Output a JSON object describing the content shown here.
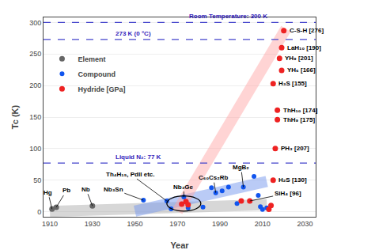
{
  "chart_data": {
    "type": "scatter",
    "xlabel": "Year",
    "ylabel": "Tc (K)",
    "xlim": [
      1907,
      2035
    ],
    "ylim": [
      -8,
      308
    ],
    "xticks": [
      1910,
      1930,
      1950,
      1970,
      1990,
      2010,
      2030
    ],
    "yticks": [
      0,
      50,
      100,
      150,
      200,
      250,
      300
    ],
    "grid": "y",
    "legend": "upper left",
    "series": [
      {
        "name": "Element",
        "color": "#666666",
        "x": [
          1911,
          1913,
          1930
        ],
        "values": [
          4.2,
          7.2,
          9.2
        ]
      },
      {
        "name": "Compound",
        "color": "#1155ee",
        "x": [
          1954,
          1965,
          1973,
          1967,
          1975,
          1982,
          1986,
          1988,
          1991,
          1994,
          1998,
          2001,
          2006,
          2008,
          2009,
          2010,
          2012
        ],
        "values": [
          18.3,
          17.0,
          23.2,
          4.5,
          6.0,
          7.5,
          38.0,
          30.0,
          33.0,
          39.0,
          13.0,
          39.0,
          56.0,
          26.0,
          8.0,
          3.5,
          6.0
        ]
      },
      {
        "name": "Hydride [GPa]",
        "color": "#ee2222",
        "x": [
          1972,
          1974,
          1975,
          2000,
          2004,
          2013,
          2014,
          2015,
          2015,
          2016,
          2017,
          2017,
          2018,
          2019,
          2019,
          2020
        ],
        "values": [
          12.0,
          16.0,
          11.0,
          17.0,
          17.0,
          4.0,
          10.0,
          203.0,
          50.0,
          100.0,
          161.0,
          146.0,
          243.0,
          260.0,
          224.0,
          287.0
        ]
      }
    ],
    "trends": [
      {
        "x": [
          1910,
          2012
        ],
        "values": [
          0.5,
          11
        ],
        "color": "#b0b0b0"
      },
      {
        "x": [
          1950,
          2012
        ],
        "values": [
          1.0,
          48
        ],
        "color": "#7799ee"
      },
      {
        "x": [
          1970,
          2021
        ],
        "values": [
          1.0,
          290
        ],
        "color": "#ffaaaa"
      }
    ],
    "reference_lines": [
      {
        "y": 300,
        "color": "#4444cc",
        "label": "Room Temperature: 300 K",
        "label_color": "#3322bb"
      },
      {
        "y": 273,
        "color": "#4444cc",
        "label": "273 K (0 °C)",
        "label_color": "#3322bb"
      },
      {
        "y": 77,
        "color": "#4444cc",
        "label": "Liquid N₂: 77 K",
        "label_color": "#3322bb"
      }
    ],
    "ellipse": {
      "x": 1973,
      "y": 13,
      "width": 16,
      "height": 24,
      "color": "#000000"
    },
    "annotations": [
      {
        "text": "Hg",
        "x": 1911,
        "y": 4.2
      },
      {
        "text": "Pb",
        "x": 1913,
        "y": 7.2
      },
      {
        "text": "Nb",
        "x": 1930,
        "y": 9.2
      },
      {
        "text": "Nb₃Sn",
        "x": 1954,
        "y": 18.3
      },
      {
        "text": "Th₄H₁₅, PdII etc.",
        "x": 1965,
        "y": 17.0
      },
      {
        "text": "Nb₃Ge",
        "x": 1973,
        "y": 23.2
      },
      {
        "text": "C₆₀Cs₂Rb",
        "x": 1988,
        "y": 30.0
      },
      {
        "text": "MgB₂",
        "x": 2001,
        "y": 39.0
      },
      {
        "text": "C-S-H [276]",
        "x": 2020,
        "y": 287.0
      },
      {
        "text": "LaH₁₀ [190]",
        "x": 2019,
        "y": 260.0
      },
      {
        "text": "YH₉ [201]",
        "x": 2018,
        "y": 243.0
      },
      {
        "text": "YH₆ [166]",
        "x": 2019,
        "y": 224.0
      },
      {
        "text": "H₃S [155]",
        "x": 2015,
        "y": 203.0
      },
      {
        "text": "ThH₁₀ [174]",
        "x": 2017,
        "y": 161.0
      },
      {
        "text": "ThH₉ [175]",
        "x": 2017,
        "y": 146.0
      },
      {
        "text": "PH₃ [207]",
        "x": 2016,
        "y": 100.0
      },
      {
        "text": "H₂S [130]",
        "x": 2015,
        "y": 50.0
      },
      {
        "text": "SiH₄ [96]",
        "x": 2004,
        "y": 17.0
      }
    ]
  }
}
